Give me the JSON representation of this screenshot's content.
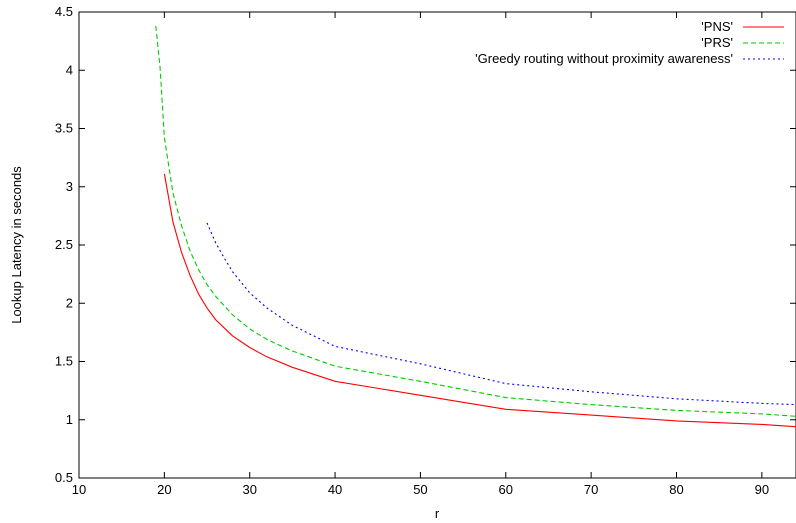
{
  "chart_data": {
    "type": "line",
    "xlabel": "r",
    "ylabel": "Lookup Latency in seconds",
    "xlim": [
      10,
      94
    ],
    "ylim": [
      0.5,
      4.5
    ],
    "x_ticks": [
      10,
      20,
      30,
      40,
      50,
      60,
      70,
      80,
      90
    ],
    "y_ticks": [
      0.5,
      1,
      1.5,
      2,
      2.5,
      3,
      3.5,
      4,
      4.5
    ],
    "x_tick_labels": [
      "10",
      "20",
      "30",
      "40",
      "50",
      "60",
      "70",
      "80",
      "90"
    ],
    "y_tick_labels": [
      "0.5",
      "1",
      "1.5",
      "2",
      "2.5",
      "3",
      "3.5",
      "4",
      "4.5"
    ],
    "legend_position": "top-right",
    "grid": false,
    "series": [
      {
        "name": "'PNS'",
        "color": "#ff0000",
        "dash": "solid",
        "x": [
          20,
          21,
          22,
          23,
          24,
          25,
          26,
          28,
          30,
          32,
          35,
          40,
          50,
          60,
          70,
          80,
          90,
          94
        ],
        "y": [
          3.11,
          2.7,
          2.44,
          2.24,
          2.08,
          1.96,
          1.86,
          1.72,
          1.62,
          1.54,
          1.45,
          1.33,
          1.21,
          1.09,
          1.04,
          0.99,
          0.96,
          0.94
        ]
      },
      {
        "name": "'PRS'",
        "color": "#00cc00",
        "dash": "dashed",
        "x": [
          19,
          19.5,
          20,
          21,
          22,
          23,
          24,
          25,
          26,
          28,
          30,
          32,
          35,
          40,
          50,
          60,
          70,
          80,
          90,
          94
        ],
        "y": [
          4.38,
          4.02,
          3.42,
          2.95,
          2.67,
          2.45,
          2.29,
          2.16,
          2.06,
          1.9,
          1.78,
          1.69,
          1.59,
          1.46,
          1.33,
          1.19,
          1.13,
          1.08,
          1.05,
          1.03
        ]
      },
      {
        "name": "'Greedy routing without proximity awareness'",
        "color": "#0000ff",
        "dash": "dotted",
        "x": [
          25,
          26,
          27,
          28,
          30,
          32,
          35,
          40,
          50,
          60,
          70,
          80,
          90,
          94
        ],
        "y": [
          2.69,
          2.52,
          2.39,
          2.27,
          2.09,
          1.96,
          1.81,
          1.63,
          1.48,
          1.31,
          1.24,
          1.18,
          1.14,
          1.13
        ]
      }
    ]
  }
}
